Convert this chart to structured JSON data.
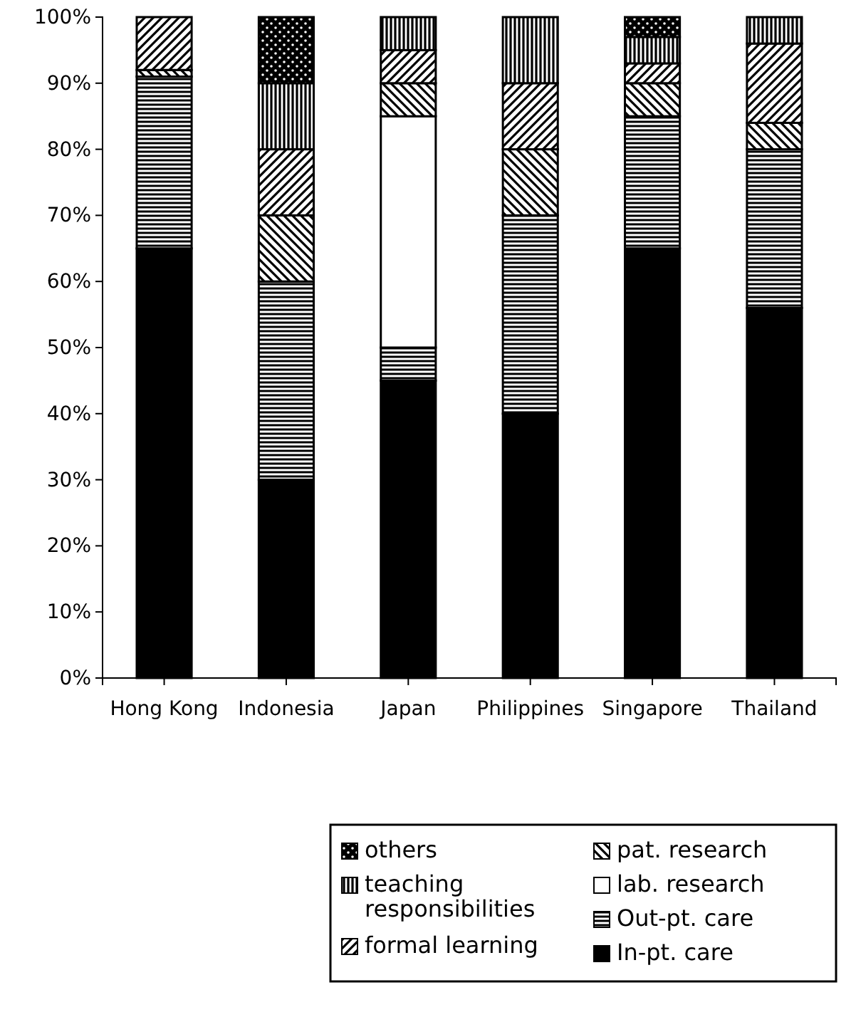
{
  "chart_data": {
    "type": "bar",
    "stacked": true,
    "categories": [
      "Hong Kong",
      "Indonesia",
      "Japan",
      "Philippines",
      "Singapore",
      "Thailand"
    ],
    "series": [
      {
        "name": "In-pt. care",
        "color": "#000000",
        "values": [
          65,
          30,
          45,
          40,
          65,
          56
        ]
      },
      {
        "name": "Out-pt. care",
        "color": "#000000",
        "values": [
          26,
          30,
          5,
          30,
          20,
          24
        ]
      },
      {
        "name": "lab. research",
        "color": "#ffffff",
        "values": [
          0,
          0,
          35,
          0,
          0,
          0
        ]
      },
      {
        "name": "pat. research",
        "color": "#000000",
        "values": [
          1,
          10,
          5,
          10,
          5,
          4
        ]
      },
      {
        "name": "formal learning",
        "color": "#000000",
        "values": [
          8,
          10,
          5,
          10,
          3,
          12
        ]
      },
      {
        "name": "teaching responsibilities",
        "color": "#000000",
        "values": [
          0,
          10,
          5,
          10,
          4,
          4
        ]
      },
      {
        "name": "others",
        "color": "#000000",
        "values": [
          0,
          10,
          0,
          0,
          3,
          0
        ]
      }
    ],
    "ylim": [
      0,
      100
    ],
    "yticks": [
      {
        "value": 0,
        "label": "0%"
      },
      {
        "value": 10,
        "label": "10%"
      },
      {
        "value": 20,
        "label": "20%"
      },
      {
        "value": 30,
        "label": "30%"
      },
      {
        "value": 40,
        "label": "40%"
      },
      {
        "value": 50,
        "label": "50%"
      },
      {
        "value": 60,
        "label": "60%"
      },
      {
        "value": 70,
        "label": "70%"
      },
      {
        "value": 80,
        "label": "80%"
      },
      {
        "value": 90,
        "label": "90%"
      },
      {
        "value": 100,
        "label": "100%"
      }
    ],
    "grid": false,
    "legend": "bottom right"
  }
}
